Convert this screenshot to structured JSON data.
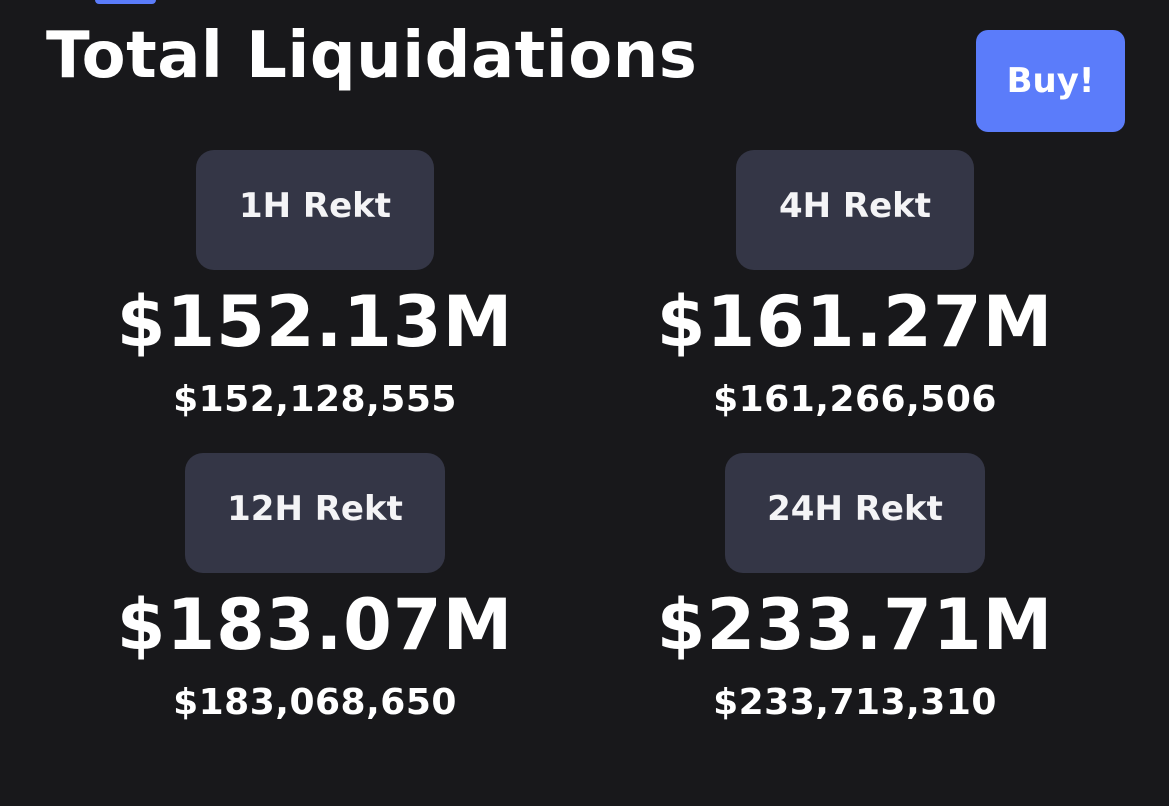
{
  "header": {
    "title": "Total Liquidations",
    "buy_label": "Buy!"
  },
  "colors": {
    "background": "#18181b",
    "accent": "#5b7cfa",
    "card": "#343646",
    "text": "#ffffff"
  },
  "stats": [
    {
      "label": "1H Rekt",
      "value": "$152.13M",
      "exact": "$152,128,555"
    },
    {
      "label": "4H Rekt",
      "value": "$161.27M",
      "exact": "$161,266,506"
    },
    {
      "label": "12H Rekt",
      "value": "$183.07M",
      "exact": "$183,068,650"
    },
    {
      "label": "24H Rekt",
      "value": "$233.71M",
      "exact": "$233,713,310"
    }
  ]
}
